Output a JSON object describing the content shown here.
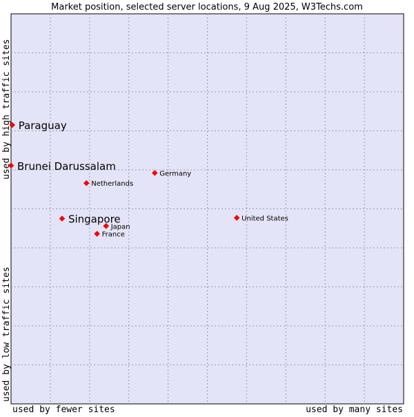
{
  "chart_data": {
    "type": "scatter",
    "title": "Market position, selected server locations, 9 Aug 2025, W3Techs.com",
    "xlabel_left": "used by fewer sites",
    "xlabel_right": "used by many sites",
    "ylabel_bottom": "used by low traffic sites",
    "ylabel_top": "used by high traffic sites",
    "xlim": [
      0,
      100
    ],
    "ylim": [
      0,
      100
    ],
    "grid": true,
    "point_color": "#ff0000",
    "plot_background": "#e4e4f8",
    "points": [
      {
        "name": "Paraguay",
        "x": 0.3,
        "y": 71.5,
        "highlight": true
      },
      {
        "name": "Brunei Darussalam",
        "x": 0.0,
        "y": 61.1,
        "highlight": true
      },
      {
        "name": "Singapore",
        "x": 13.0,
        "y": 47.5,
        "highlight": true
      },
      {
        "name": "Germany",
        "x": 36.6,
        "y": 59.2,
        "highlight": false
      },
      {
        "name": "Netherlands",
        "x": 19.2,
        "y": 56.6,
        "highlight": false
      },
      {
        "name": "United States",
        "x": 57.5,
        "y": 47.7,
        "highlight": false
      },
      {
        "name": "Japan",
        "x": 24.2,
        "y": 45.6,
        "highlight": false
      },
      {
        "name": "France",
        "x": 21.9,
        "y": 43.6,
        "highlight": false
      }
    ]
  }
}
